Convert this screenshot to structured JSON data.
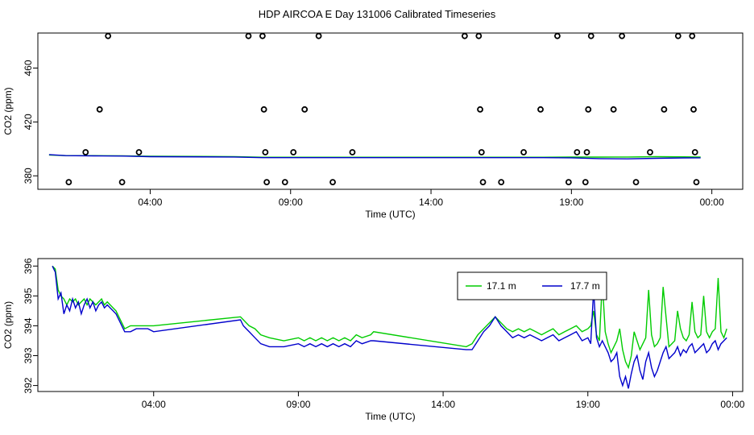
{
  "title": "HDP AIRCOA E  Day 131006  Calibrated Timeseries",
  "colors": {
    "green": "#00cc00",
    "blue": "#0000cc",
    "black": "#000000"
  },
  "chart_data": [
    {
      "type": "line+scatter",
      "xlabel": "Time (UTC)",
      "ylabel": "CO2 (ppm)",
      "xlim_hours": [
        0.0,
        25.1
      ],
      "ylim": [
        370,
        486
      ],
      "x_ticks": [
        {
          "h": 4,
          "label": "04:00"
        },
        {
          "h": 9,
          "label": "09:00"
        },
        {
          "h": 14,
          "label": "14:00"
        },
        {
          "h": 19,
          "label": "19:00"
        },
        {
          "h": 24,
          "label": "00:00"
        }
      ],
      "y_ticks": [
        {
          "v": 380,
          "label": "380"
        },
        {
          "v": 420,
          "label": "420"
        },
        {
          "v": 460,
          "label": "460"
        }
      ],
      "scatter_series": {
        "name": "calibration points",
        "points": [
          [
            1.1,
            375.3
          ],
          [
            1.7,
            397.5
          ],
          [
            2.2,
            429.3
          ],
          [
            2.5,
            483.8
          ],
          [
            3.0,
            375.3
          ],
          [
            3.6,
            397.5
          ],
          [
            7.5,
            483.8
          ],
          [
            8.0,
            483.8
          ],
          [
            8.05,
            429.3
          ],
          [
            8.1,
            397.5
          ],
          [
            8.15,
            375.3
          ],
          [
            8.8,
            375.3
          ],
          [
            9.5,
            429.3
          ],
          [
            10.0,
            483.8
          ],
          [
            9.1,
            397.5
          ],
          [
            10.5,
            375.3
          ],
          [
            11.2,
            397.5
          ],
          [
            15.2,
            483.8
          ],
          [
            15.7,
            483.8
          ],
          [
            15.75,
            429.3
          ],
          [
            15.8,
            397.5
          ],
          [
            15.85,
            375.3
          ],
          [
            16.5,
            375.3
          ],
          [
            17.3,
            397.5
          ],
          [
            17.9,
            429.3
          ],
          [
            18.5,
            483.8
          ],
          [
            18.9,
            375.3
          ],
          [
            19.2,
            397.5
          ],
          [
            19.5,
            375.3
          ],
          [
            19.55,
            397.5
          ],
          [
            19.6,
            429.3
          ],
          [
            19.7,
            483.8
          ],
          [
            20.5,
            429.3
          ],
          [
            20.8,
            483.8
          ],
          [
            21.3,
            375.3
          ],
          [
            21.8,
            397.5
          ],
          [
            22.3,
            429.3
          ],
          [
            22.8,
            483.8
          ],
          [
            23.3,
            483.8
          ],
          [
            23.35,
            429.3
          ],
          [
            23.4,
            397.5
          ],
          [
            23.45,
            375.3
          ]
        ]
      },
      "line_series": [
        {
          "name": "17.1 m",
          "color": "#00cc00",
          "x": [
            0.4,
            1.0,
            2.0,
            3.0,
            4.0,
            7.0,
            8.0,
            9.0,
            10.0,
            11.0,
            12.0,
            13.0,
            14.0,
            15.0,
            16.0,
            17.0,
            18.0,
            19.0,
            20.0,
            21.0,
            22.0,
            23.0,
            23.6
          ],
          "values": [
            395.5,
            395,
            395,
            394.8,
            394.5,
            394.3,
            393.8,
            393.8,
            393.8,
            393.8,
            393.8,
            393.8,
            393.8,
            393.8,
            393.8,
            393.8,
            393.8,
            394.0,
            393.9,
            394.0,
            394.2,
            394.1,
            394.0
          ]
        },
        {
          "name": "17.7 m",
          "color": "#0000cc",
          "x": [
            0.4,
            1.0,
            2.0,
            3.0,
            4.0,
            7.0,
            8.0,
            9.0,
            10.0,
            11.0,
            12.0,
            13.0,
            14.0,
            15.0,
            16.0,
            17.0,
            18.0,
            19.0,
            20.0,
            21.0,
            22.0,
            23.0,
            23.6
          ],
          "values": [
            395.8,
            395,
            394.8,
            394.7,
            394.2,
            394.0,
            393.5,
            393.5,
            393.5,
            393.5,
            393.5,
            393.5,
            393.5,
            393.5,
            393.5,
            393.5,
            393.5,
            393.4,
            392.8,
            392.6,
            393.0,
            393.3,
            393.4
          ]
        }
      ]
    },
    {
      "type": "line",
      "xlabel": "Time (UTC)",
      "ylabel": "CO2 (ppm)",
      "xlim_hours": [
        0.0,
        24.35
      ],
      "ylim": [
        391.8,
        396.25
      ],
      "x_ticks": [
        {
          "h": 4,
          "label": "04:00"
        },
        {
          "h": 9,
          "label": "09:00"
        },
        {
          "h": 14,
          "label": "14:00"
        },
        {
          "h": 19,
          "label": "19:00"
        },
        {
          "h": 24,
          "label": "00:00"
        }
      ],
      "y_ticks": [
        {
          "v": 392,
          "label": "392"
        },
        {
          "v": 393,
          "label": "393"
        },
        {
          "v": 394,
          "label": "394"
        },
        {
          "v": 395,
          "label": "395"
        },
        {
          "v": 396,
          "label": "396"
        }
      ],
      "legend": {
        "placement": "top-right",
        "entries": [
          {
            "label": "17.1 m",
            "color": "#00cc00"
          },
          {
            "label": "17.7 m",
            "color": "#0000cc"
          }
        ]
      },
      "series": [
        {
          "name": "17.1 m",
          "color": "#00cc00",
          "x": [
            0.5,
            0.6,
            0.7,
            0.8,
            0.9,
            1.0,
            1.1,
            1.2,
            1.3,
            1.4,
            1.5,
            1.6,
            1.7,
            1.8,
            1.9,
            2.0,
            2.1,
            2.2,
            2.3,
            2.4,
            2.5,
            2.6,
            2.7,
            2.8,
            2.9,
            3.0,
            3.2,
            3.4,
            3.6,
            3.8,
            4.0,
            7.0,
            7.1,
            7.2,
            7.3,
            7.5,
            7.7,
            8.0,
            8.5,
            9.0,
            9.2,
            9.4,
            9.6,
            9.8,
            10.0,
            10.2,
            10.4,
            10.6,
            10.8,
            11.0,
            11.2,
            11.5,
            11.6,
            14.8,
            15.0,
            15.2,
            15.4,
            15.6,
            15.8,
            16.0,
            16.2,
            16.4,
            16.6,
            16.8,
            17.0,
            17.2,
            17.4,
            17.6,
            17.8,
            18.0,
            18.2,
            18.4,
            18.6,
            18.8,
            19.0,
            19.1,
            19.2,
            19.3,
            19.4,
            19.5,
            19.6,
            19.7,
            19.8,
            19.9,
            20.0,
            20.1,
            20.2,
            20.3,
            20.4,
            20.5,
            20.6,
            20.7,
            20.8,
            20.9,
            21.0,
            21.1,
            21.2,
            21.3,
            21.4,
            21.5,
            21.6,
            21.7,
            21.8,
            21.9,
            22.0,
            22.1,
            22.2,
            22.3,
            22.4,
            22.5,
            22.6,
            22.7,
            22.8,
            22.9,
            23.0,
            23.1,
            23.2,
            23.3,
            23.4,
            23.5,
            23.6,
            23.7,
            23.8
          ],
          "values": [
            396.0,
            395.9,
            395.2,
            395.0,
            394.9,
            394.7,
            394.9,
            394.8,
            394.9,
            394.7,
            394.8,
            394.9,
            394.7,
            394.9,
            394.8,
            394.7,
            394.8,
            394.9,
            394.7,
            394.8,
            394.7,
            394.6,
            394.5,
            394.3,
            394.1,
            393.9,
            394.0,
            394.0,
            394.0,
            394.0,
            394.0,
            394.3,
            394.2,
            394.1,
            394.0,
            393.9,
            393.7,
            393.6,
            393.5,
            393.6,
            393.5,
            393.6,
            393.5,
            393.6,
            393.5,
            393.6,
            393.5,
            393.6,
            393.5,
            393.7,
            393.6,
            393.7,
            393.8,
            393.3,
            393.4,
            393.7,
            393.9,
            394.1,
            394.3,
            394.1,
            393.9,
            393.8,
            393.9,
            393.8,
            393.9,
            393.8,
            393.7,
            393.8,
            393.9,
            393.7,
            393.8,
            393.9,
            394.0,
            393.8,
            393.9,
            394.0,
            394.5,
            393.7,
            393.5,
            395.5,
            393.8,
            393.4,
            393.1,
            393.3,
            393.5,
            393.9,
            393.2,
            392.8,
            392.6,
            393.0,
            393.8,
            393.5,
            393.2,
            393.4,
            393.6,
            395.2,
            393.7,
            393.3,
            393.4,
            393.6,
            395.3,
            394.3,
            393.3,
            393.4,
            393.5,
            394.5,
            393.9,
            393.6,
            393.5,
            393.7,
            394.8,
            393.8,
            393.6,
            393.7,
            395.0,
            393.8,
            393.6,
            393.8,
            393.9,
            395.6,
            393.8,
            393.6,
            393.9
          ]
        },
        {
          "name": "17.7 m",
          "color": "#0000cc",
          "x": [
            0.5,
            0.6,
            0.7,
            0.8,
            0.9,
            1.0,
            1.1,
            1.2,
            1.3,
            1.4,
            1.5,
            1.6,
            1.7,
            1.8,
            1.9,
            2.0,
            2.1,
            2.2,
            2.3,
            2.4,
            2.5,
            2.6,
            2.7,
            2.8,
            2.9,
            3.0,
            3.2,
            3.4,
            3.6,
            3.8,
            4.0,
            7.0,
            7.1,
            7.2,
            7.3,
            7.5,
            7.7,
            8.0,
            8.5,
            9.0,
            9.2,
            9.4,
            9.6,
            9.8,
            10.0,
            10.2,
            10.4,
            10.6,
            10.8,
            11.0,
            11.2,
            11.5,
            11.6,
            14.8,
            15.0,
            15.2,
            15.4,
            15.6,
            15.8,
            16.0,
            16.2,
            16.4,
            16.6,
            16.8,
            17.0,
            17.2,
            17.4,
            17.6,
            17.8,
            18.0,
            18.2,
            18.4,
            18.6,
            18.8,
            19.0,
            19.1,
            19.2,
            19.3,
            19.4,
            19.5,
            19.6,
            19.7,
            19.8,
            19.9,
            20.0,
            20.1,
            20.2,
            20.3,
            20.4,
            20.5,
            20.6,
            20.7,
            20.8,
            20.9,
            21.0,
            21.1,
            21.2,
            21.3,
            21.4,
            21.5,
            21.6,
            21.7,
            21.8,
            21.9,
            22.0,
            22.1,
            22.2,
            22.3,
            22.4,
            22.5,
            22.6,
            22.7,
            22.8,
            22.9,
            23.0,
            23.1,
            23.2,
            23.3,
            23.4,
            23.5,
            23.6,
            23.7,
            23.8
          ],
          "values": [
            396.0,
            395.8,
            394.9,
            395.1,
            394.4,
            394.7,
            394.5,
            394.9,
            394.6,
            394.8,
            394.4,
            394.7,
            394.9,
            394.6,
            394.8,
            394.5,
            394.7,
            394.8,
            394.6,
            394.7,
            394.6,
            394.5,
            394.4,
            394.2,
            394.0,
            393.8,
            393.8,
            393.9,
            393.9,
            393.9,
            393.8,
            394.2,
            394.0,
            393.9,
            393.8,
            393.6,
            393.4,
            393.3,
            393.3,
            393.4,
            393.3,
            393.4,
            393.3,
            393.4,
            393.3,
            393.4,
            393.3,
            393.4,
            393.3,
            393.5,
            393.4,
            393.5,
            393.5,
            393.2,
            393.2,
            393.5,
            393.8,
            394.0,
            394.3,
            394.0,
            393.8,
            393.6,
            393.7,
            393.6,
            393.7,
            393.6,
            393.5,
            393.6,
            393.7,
            393.5,
            393.6,
            393.7,
            393.8,
            393.5,
            393.6,
            393.4,
            395.2,
            393.6,
            393.3,
            393.5,
            393.3,
            393.1,
            392.8,
            392.9,
            393.1,
            392.3,
            392.0,
            392.3,
            391.9,
            392.4,
            392.8,
            393.0,
            392.5,
            392.2,
            392.8,
            393.1,
            392.6,
            392.3,
            392.5,
            392.8,
            393.1,
            393.3,
            392.9,
            393.0,
            393.1,
            393.3,
            393.0,
            393.2,
            393.1,
            393.3,
            393.4,
            393.1,
            393.2,
            393.3,
            393.4,
            393.1,
            393.2,
            393.4,
            393.5,
            393.2,
            393.4,
            393.5,
            393.6
          ]
        }
      ]
    }
  ]
}
